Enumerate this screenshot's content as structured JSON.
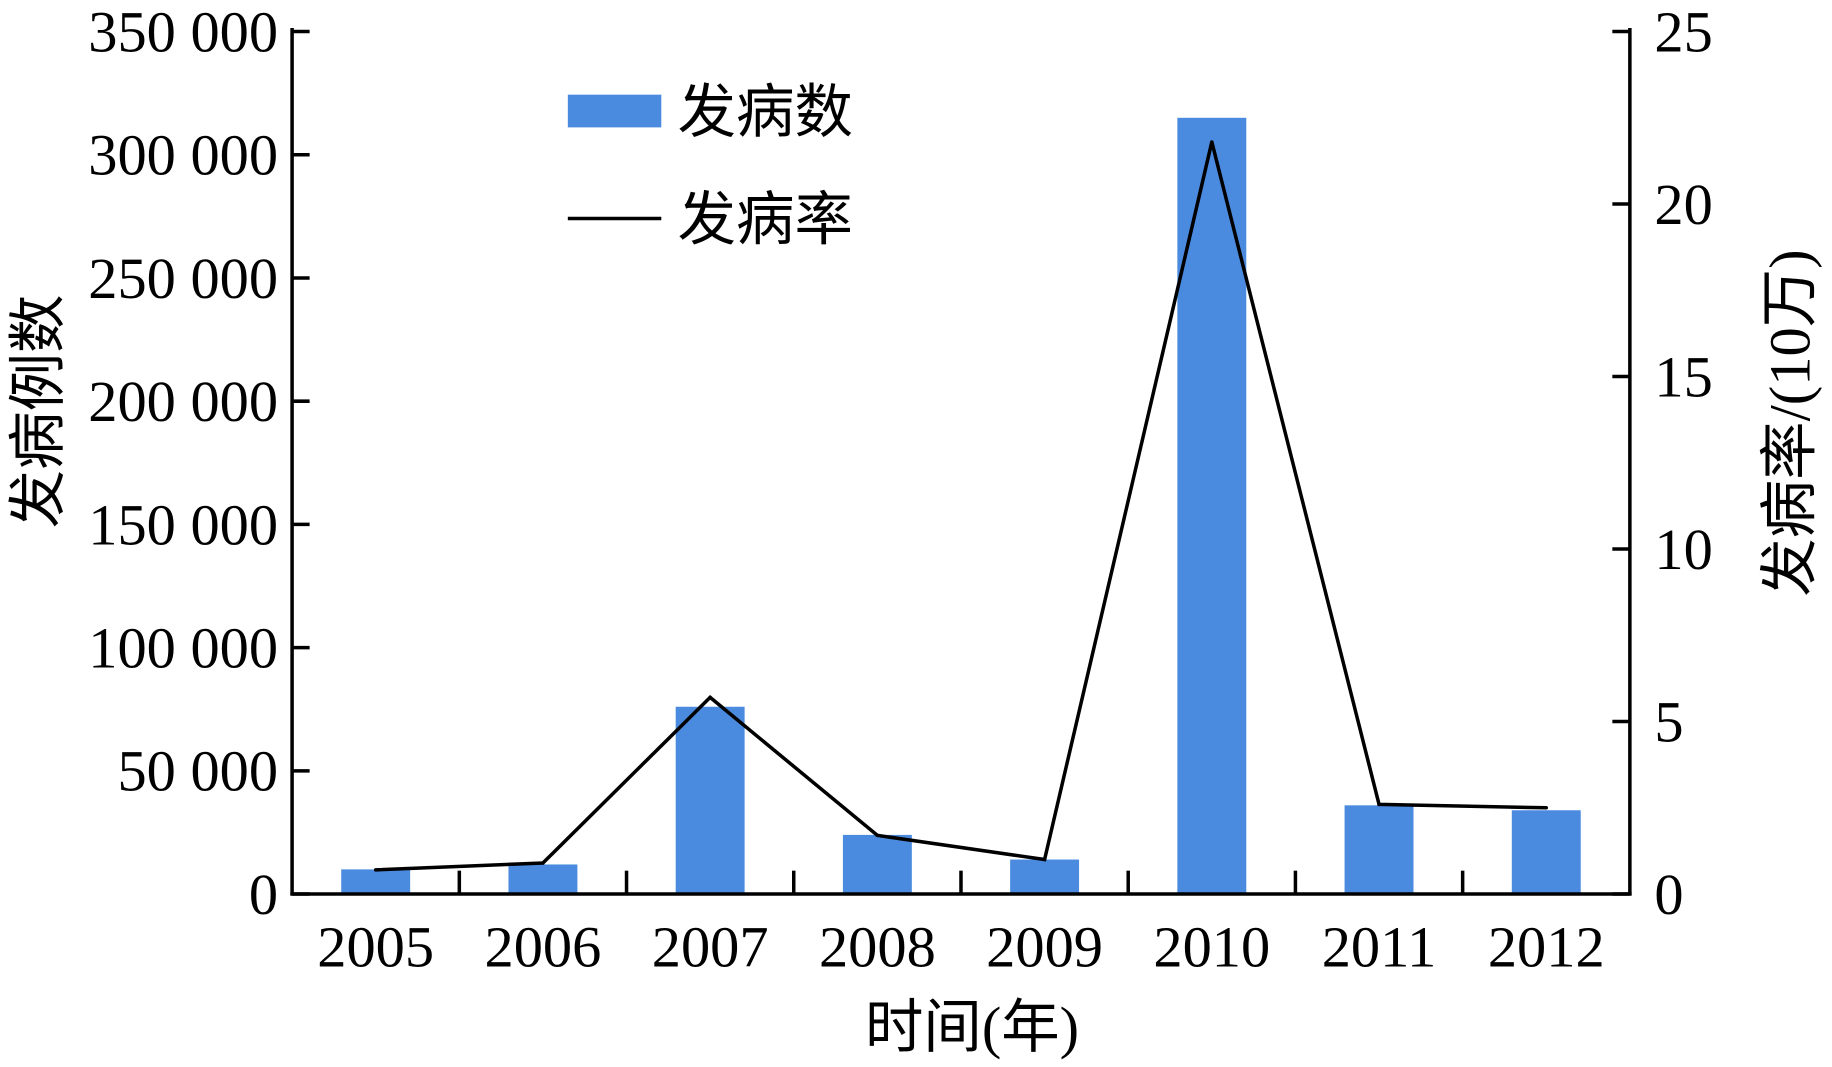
{
  "chart_data": {
    "type": "bar",
    "categories": [
      "2005",
      "2006",
      "2007",
      "2008",
      "2009",
      "2010",
      "2011",
      "2012"
    ],
    "series": [
      {
        "name": "发病数",
        "type": "bar",
        "axis": "left",
        "color": "#4a8be0",
        "values": [
          10000,
          12000,
          76000,
          24000,
          14000,
          315000,
          36000,
          34000
        ]
      },
      {
        "name": "发病率",
        "type": "line",
        "axis": "right",
        "color": "#000000",
        "values": [
          0.7,
          0.9,
          5.7,
          1.7,
          1.0,
          21.8,
          2.6,
          2.5
        ]
      }
    ],
    "xlabel": "时间(年)",
    "ylabel": "发病例数",
    "ylabel_right": "发病率/(10万)",
    "ylim": [
      0,
      350000
    ],
    "ylim_right": [
      0,
      25
    ],
    "yticks": [
      0,
      50000,
      100000,
      150000,
      200000,
      250000,
      300000,
      350000
    ],
    "ytick_labels": [
      "0",
      "50 000",
      "100 000",
      "150 000",
      "200 000",
      "250 000",
      "300 000",
      "350 000"
    ],
    "yticks_right": [
      0,
      5,
      10,
      15,
      20,
      25
    ],
    "legend_position": "top-left",
    "grid": false
  }
}
